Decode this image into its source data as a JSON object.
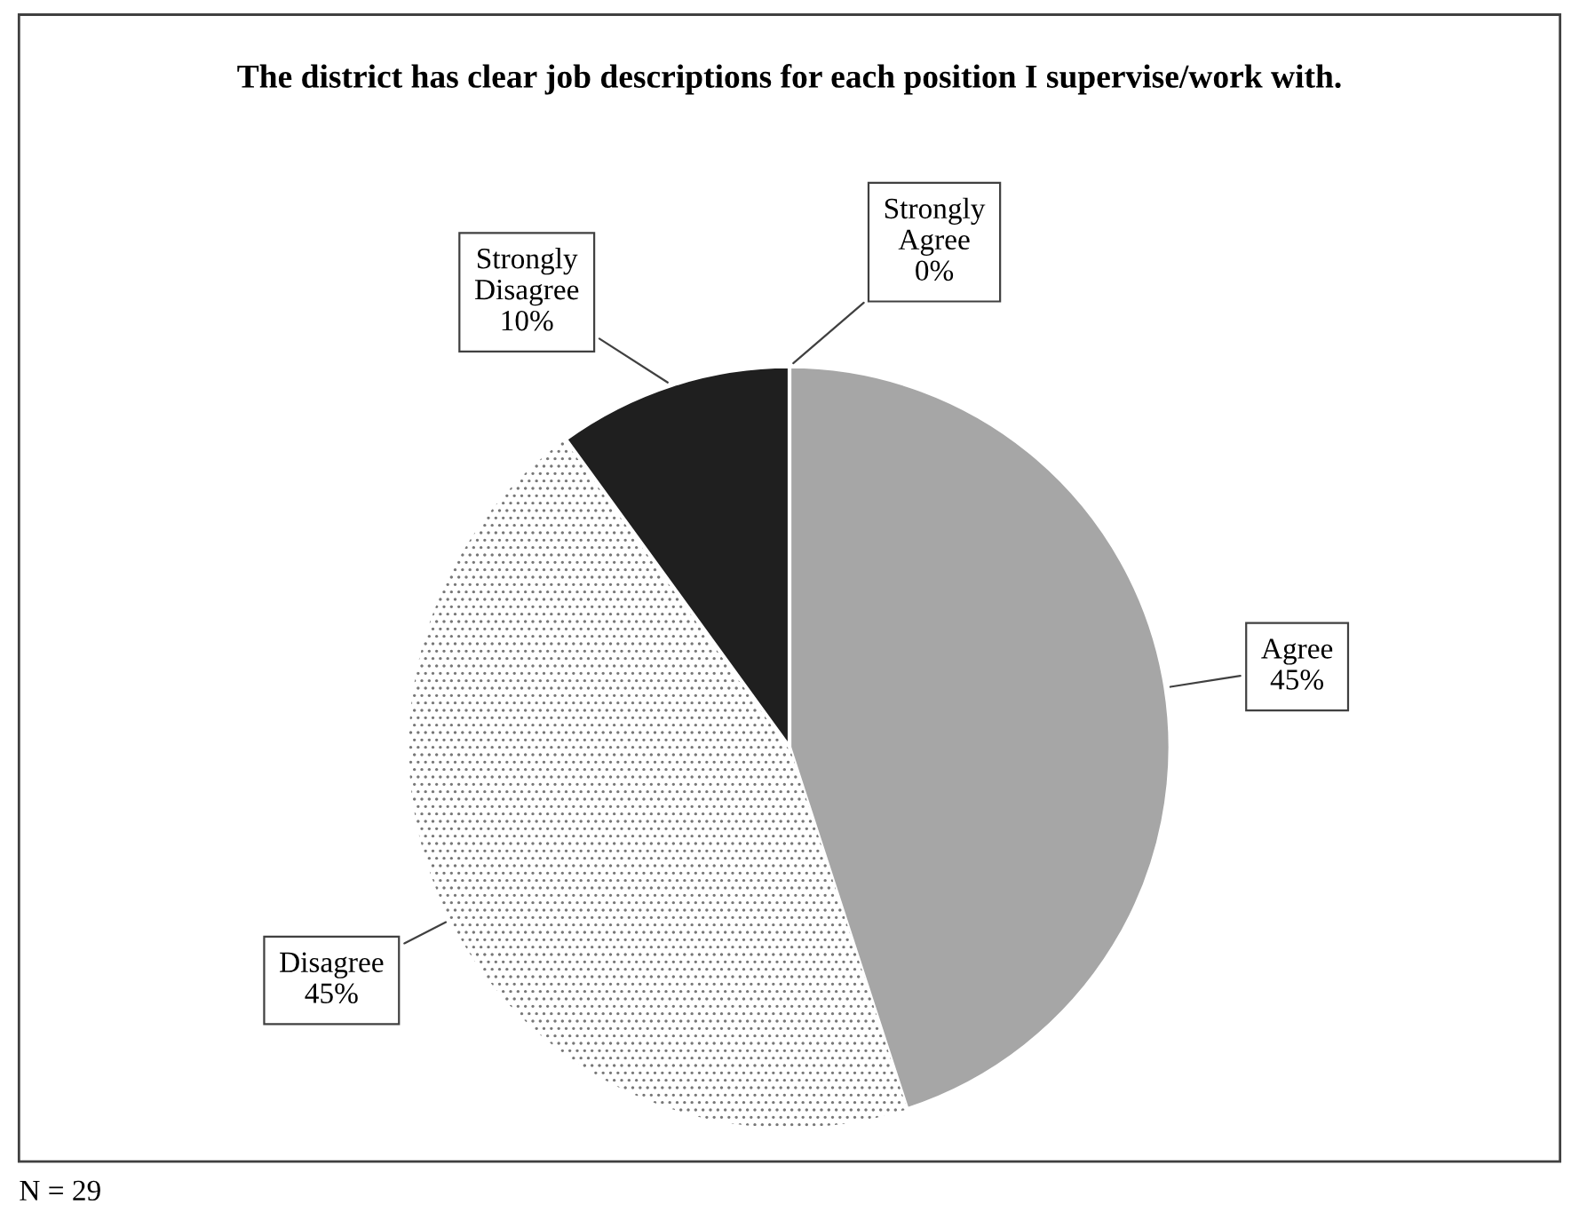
{
  "chart_data": {
    "type": "pie",
    "title": "The district has clear job descriptions for each position I supervise/work with.",
    "categories": [
      "Strongly Agree",
      "Agree",
      "Disagree",
      "Strongly Disagree"
    ],
    "values": [
      0,
      45,
      45,
      10
    ],
    "colors": [
      "#d9d9d9",
      "#a6a6a6",
      "#ffffff",
      "#1f1f1f"
    ],
    "value_labels": [
      "0%",
      "45%",
      "45%",
      "10%"
    ],
    "annotations": [
      "N = 29"
    ]
  }
}
